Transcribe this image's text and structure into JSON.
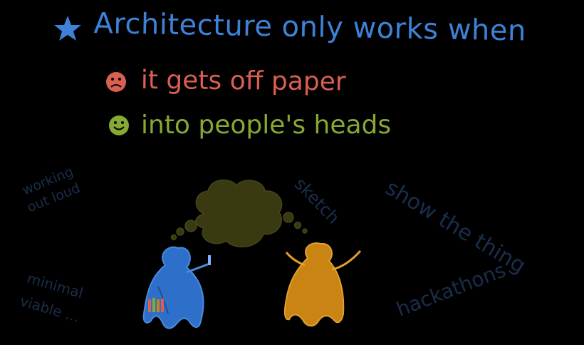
{
  "slide": {
    "title": "Architecture only works when",
    "points": [
      {
        "text": "it gets off paper",
        "mood": "sad",
        "color": "#d95f52"
      },
      {
        "text": "into people's heads",
        "mood": "happy",
        "color": "#86a834"
      }
    ],
    "notes": {
      "working_line1": "working",
      "working_line2": "out loud",
      "minimal_line1": "minimal",
      "minimal_line2": "viable ...",
      "sketch": "sketch",
      "show_the_thing": "show the thing",
      "hackathons": "hackathons"
    },
    "colors": {
      "background": "#000000",
      "title": "#3d82d6",
      "sad": "#d95f52",
      "happy": "#86a834",
      "faint_text": "#1a2d4a",
      "thought_cloud": "#3a3a12",
      "person_blue": "#2e6fc9",
      "person_orange": "#c98414"
    },
    "icons": [
      "star-icon",
      "sad-face-icon",
      "happy-face-icon",
      "thought-cloud",
      "blue-person",
      "orange-person"
    ]
  }
}
